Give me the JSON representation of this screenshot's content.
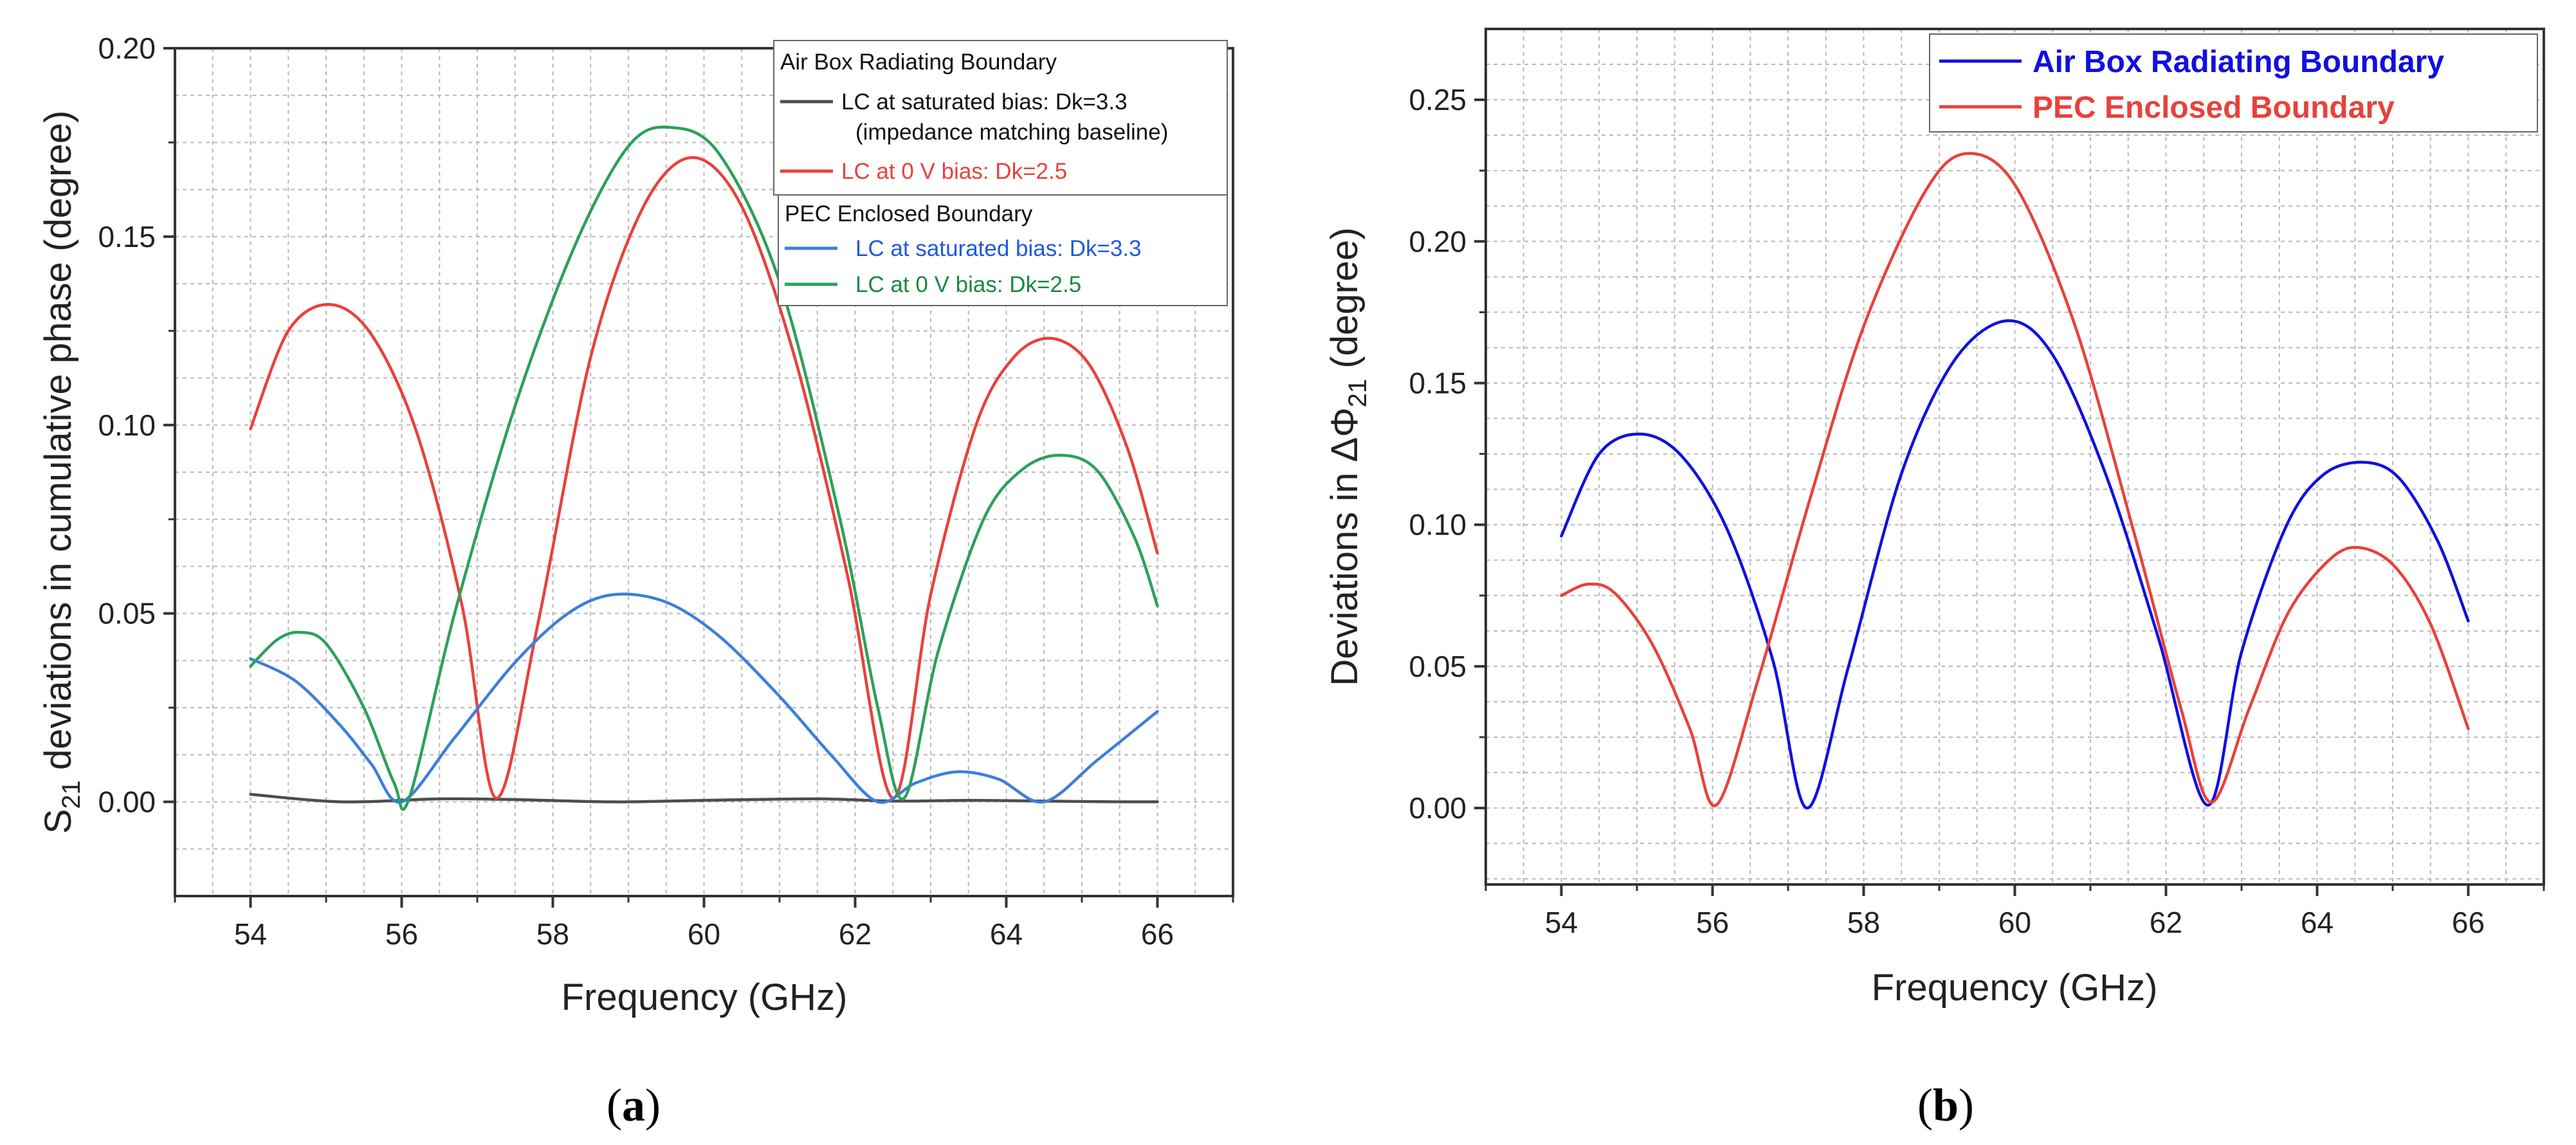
{
  "chart_data": [
    {
      "type": "line",
      "panel": "(a)",
      "xlabel": "Frequency (GHz)",
      "ylabel": "S21 deviations in cumulative phase (degree)",
      "ylabel_parts": [
        "S",
        "21",
        " deviations in cumulative phase (degree)"
      ],
      "xlim": [
        53,
        67
      ],
      "ylim": [
        -0.025,
        0.2
      ],
      "xticks": [
        54,
        56,
        58,
        60,
        62,
        64,
        66
      ],
      "yticks": [
        0.0,
        0.05,
        0.1,
        0.15,
        0.2
      ],
      "ytick_labels": [
        "0.00",
        "0.05",
        "0.10",
        "0.15",
        "0.20"
      ],
      "grid": true,
      "legend_position": "top-right",
      "legend_groups": [
        {
          "title": "Air Box Radiating Boundary",
          "entries": [
            {
              "label": "LC at saturated bias: Dk=3.3",
              "label2": "(impedance matching baseline)",
              "color": "#4d4d4d"
            },
            {
              "label": "LC at 0 V bias: Dk=2.5",
              "color": "#e8413b"
            }
          ]
        },
        {
          "title": "PEC Enclosed Boundary",
          "entries": [
            {
              "label": "LC at saturated bias: Dk=3.3",
              "color": "#3b7fd9"
            },
            {
              "label": "LC at 0 V bias: Dk=2.5",
              "color": "#2ca05a"
            }
          ]
        }
      ],
      "series": [
        {
          "name": "Air Box - LC at saturated bias: Dk=3.3",
          "color": "#4d4d4d",
          "x": [
            54,
            55.2,
            56.5,
            57.5,
            58.8,
            60,
            61.5,
            62.5,
            63.5,
            64.5,
            65.5,
            66
          ],
          "y": [
            0.002,
            0.0,
            0.0008,
            0.0006,
            0.0,
            0.0004,
            0.0008,
            0.0002,
            0.0004,
            0.0002,
            0.0,
            0.0
          ]
        },
        {
          "name": "Air Box - LC at 0 V bias: Dk=2.5",
          "color": "#e8413b",
          "x": [
            54,
            54.5,
            55.05,
            55.6,
            56.2,
            56.8,
            57.25,
            57.8,
            58.5,
            59.2,
            59.85,
            60.5,
            61.2,
            61.9,
            62.5,
            63.0,
            63.6,
            64.1,
            64.6,
            65.1,
            65.6,
            66
          ],
          "y": [
            0.099,
            0.125,
            0.132,
            0.124,
            0.098,
            0.052,
            0.001,
            0.047,
            0.118,
            0.158,
            0.171,
            0.158,
            0.118,
            0.06,
            0.001,
            0.055,
            0.1,
            0.118,
            0.123,
            0.116,
            0.094,
            0.066
          ]
        },
        {
          "name": "PEC - LC at saturated bias: Dk=3.3",
          "color": "#3b7fd9",
          "x": [
            54,
            54.6,
            55.2,
            55.6,
            56.0,
            56.7,
            57.5,
            58.2,
            58.8,
            59.5,
            60.2,
            61.0,
            61.7,
            62.3,
            62.8,
            63.35,
            63.9,
            64.5,
            65.2,
            66
          ],
          "y": [
            0.038,
            0.032,
            0.02,
            0.01,
            0.0,
            0.017,
            0.037,
            0.05,
            0.055,
            0.053,
            0.044,
            0.028,
            0.012,
            0.0,
            0.005,
            0.008,
            0.006,
            0.0,
            0.011,
            0.024
          ]
        },
        {
          "name": "PEC - LC at 0 V bias: Dk=2.5",
          "color": "#2ca05a",
          "x": [
            54,
            54.35,
            54.65,
            55.0,
            55.5,
            55.9,
            56.1,
            56.7,
            57.5,
            58.3,
            59.0,
            59.55,
            60.2,
            61.0,
            61.8,
            62.3,
            62.65,
            63.1,
            63.7,
            64.2,
            64.7,
            65.2,
            65.7,
            66
          ],
          "y": [
            0.036,
            0.043,
            0.045,
            0.042,
            0.025,
            0.005,
            0.001,
            0.05,
            0.105,
            0.148,
            0.174,
            0.179,
            0.172,
            0.138,
            0.075,
            0.025,
            0.001,
            0.04,
            0.075,
            0.088,
            0.092,
            0.088,
            0.07,
            0.052
          ]
        }
      ]
    },
    {
      "type": "line",
      "panel": "(b)",
      "xlabel": "Frequency (GHz)",
      "ylabel": "Deviations in ΔΦ21 (degree)",
      "ylabel_parts": [
        "Deviations in ΔΦ",
        "21",
        " (degree)"
      ],
      "xlim": [
        53,
        67
      ],
      "ylim": [
        -0.027,
        0.275
      ],
      "xticks": [
        54,
        56,
        58,
        60,
        62,
        64,
        66
      ],
      "yticks": [
        0.0,
        0.05,
        0.1,
        0.15,
        0.2,
        0.25
      ],
      "ytick_labels": [
        "0.00",
        "0.05",
        "0.10",
        "0.15",
        "0.20",
        "0.25"
      ],
      "grid": true,
      "legend_position": "top-right",
      "legend_entries": [
        {
          "label": "Air Box Radiating Boundary",
          "color": "#1010e0"
        },
        {
          "label": "PEC Enclosed Boundary",
          "color": "#e8413b"
        }
      ],
      "series": [
        {
          "name": "Air Box Radiating Boundary",
          "color": "#1010e0",
          "x": [
            54,
            54.5,
            55.05,
            55.6,
            56.2,
            56.8,
            57.25,
            57.8,
            58.5,
            59.2,
            59.9,
            60.5,
            61.2,
            61.9,
            62.55,
            63.0,
            63.6,
            64.1,
            64.65,
            65.1,
            65.6,
            66
          ],
          "y": [
            0.096,
            0.125,
            0.132,
            0.124,
            0.098,
            0.052,
            0.0,
            0.05,
            0.118,
            0.158,
            0.172,
            0.16,
            0.118,
            0.06,
            0.001,
            0.055,
            0.1,
            0.118,
            0.122,
            0.116,
            0.094,
            0.066
          ]
        },
        {
          "name": "PEC Enclosed Boundary",
          "color": "#e8413b",
          "x": [
            54,
            54.35,
            54.7,
            55.2,
            55.7,
            56.05,
            56.6,
            57.3,
            58.0,
            58.8,
            59.35,
            60.0,
            60.8,
            61.6,
            62.2,
            62.6,
            63.1,
            63.6,
            64.1,
            64.5,
            65.0,
            65.5,
            66
          ],
          "y": [
            0.075,
            0.079,
            0.076,
            0.058,
            0.028,
            0.001,
            0.045,
            0.11,
            0.17,
            0.217,
            0.231,
            0.22,
            0.17,
            0.095,
            0.035,
            0.002,
            0.035,
            0.068,
            0.086,
            0.092,
            0.086,
            0.065,
            0.028
          ]
        }
      ]
    }
  ]
}
